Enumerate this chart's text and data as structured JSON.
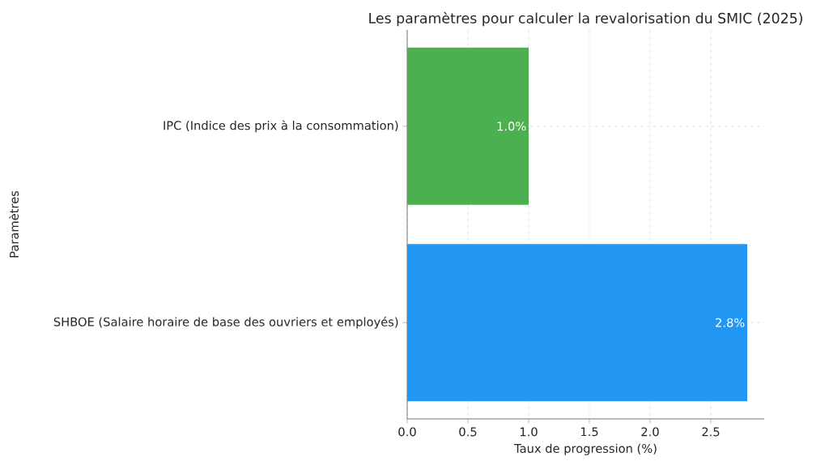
{
  "chart_data": {
    "type": "bar",
    "orientation": "horizontal",
    "title": "Les paramètres pour calculer la revalorisation du SMIC (2025)",
    "xlabel": "Taux de progression (%)",
    "ylabel": "Paramètres",
    "categories": [
      "IPC (Indice des prix à la consommation)",
      "SHBOE (Salaire horaire de base des ouvriers et employés)"
    ],
    "values": [
      1.0,
      2.8
    ],
    "colors": [
      "#4caf50",
      "#2196f3"
    ],
    "value_labels": [
      "1.0%",
      "2.8%"
    ],
    "xlim": [
      0,
      2.94
    ],
    "xticks": [
      {
        "value": 0,
        "label": "0.0"
      },
      {
        "value": 0.5,
        "label": "0.5"
      },
      {
        "value": 1,
        "label": "1.0"
      },
      {
        "value": 1.5,
        "label": "1.5"
      },
      {
        "value": 2,
        "label": "2.0"
      },
      {
        "value": 2.5,
        "label": "2.5"
      }
    ],
    "grid": true
  }
}
